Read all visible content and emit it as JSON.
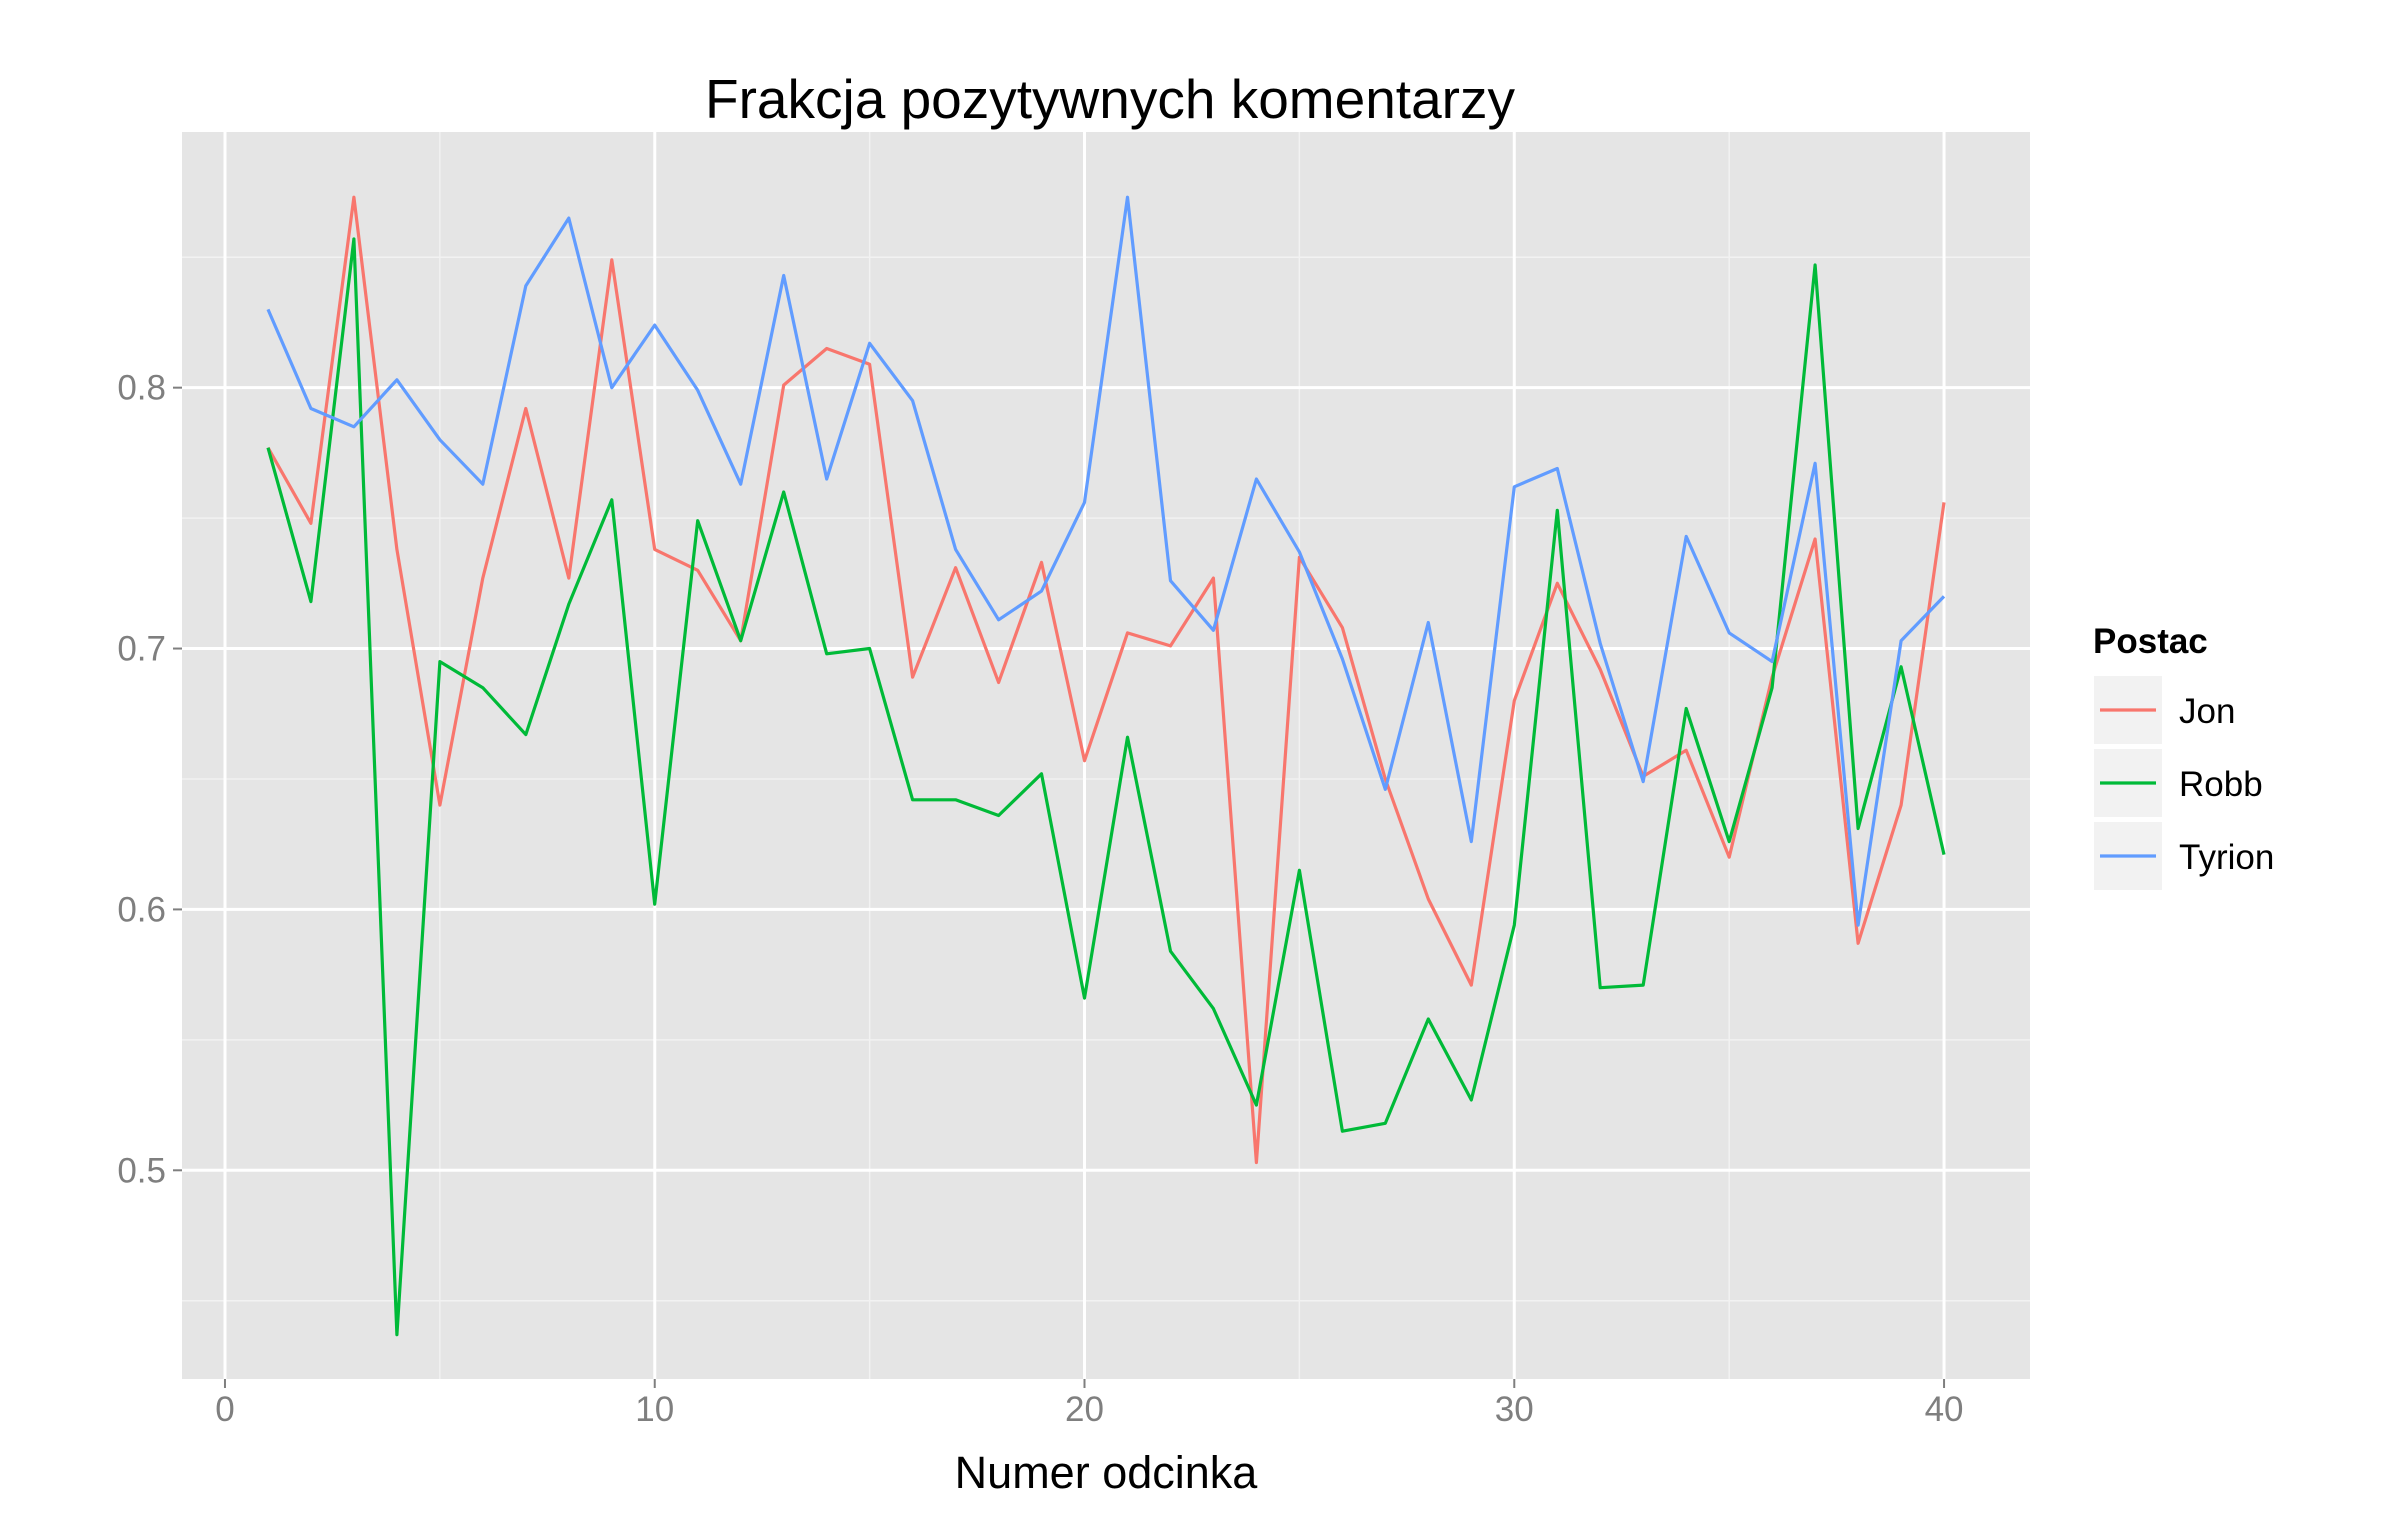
{
  "chart_data": {
    "type": "line",
    "title": "Frakcja pozytywnych komentarzy",
    "xlabel": "Numer odcinka",
    "ylabel": "",
    "xlim": [
      -1,
      42
    ],
    "ylim": [
      0.42,
      0.898
    ],
    "x_ticks": [
      0,
      10,
      20,
      30,
      40
    ],
    "x_tick_labels": [
      "0",
      "10",
      "20",
      "30",
      "40"
    ],
    "y_ticks": [
      0.5,
      0.6,
      0.7,
      0.8
    ],
    "y_tick_labels": [
      "0.5",
      "0.6",
      "0.7",
      "0.8"
    ],
    "grid": true,
    "background": "#e5e5e5",
    "legend": {
      "title": "Postac",
      "position": "right"
    },
    "x": [
      1,
      2,
      3,
      4,
      5,
      6,
      7,
      8,
      9,
      10,
      11,
      12,
      13,
      14,
      15,
      16,
      17,
      18,
      19,
      20,
      21,
      22,
      23,
      24,
      25,
      26,
      27,
      28,
      29,
      30,
      31,
      32,
      33,
      34,
      35,
      36,
      37,
      38,
      39,
      40
    ],
    "series": [
      {
        "name": "Jon",
        "color": "#f8766d",
        "values": [
          0.777,
          0.748,
          0.873,
          0.738,
          0.64,
          0.727,
          0.792,
          0.727,
          0.849,
          0.738,
          0.73,
          0.703,
          0.801,
          0.815,
          0.809,
          0.689,
          0.731,
          0.687,
          0.733,
          0.657,
          0.706,
          0.701,
          0.727,
          0.503,
          0.735,
          0.708,
          0.65,
          0.604,
          0.571,
          0.68,
          0.725,
          0.692,
          0.651,
          0.661,
          0.62,
          0.689,
          0.742,
          0.587,
          0.64,
          0.756
        ]
      },
      {
        "name": "Robb",
        "color": "#00ba38",
        "values": [
          0.777,
          0.718,
          0.857,
          0.437,
          0.695,
          0.685,
          0.667,
          0.717,
          0.757,
          0.602,
          0.749,
          0.703,
          0.76,
          0.698,
          0.7,
          0.642,
          0.642,
          0.636,
          0.652,
          0.566,
          0.666,
          0.584,
          0.562,
          0.525,
          0.615,
          0.515,
          0.518,
          0.558,
          0.527,
          0.594,
          0.753,
          0.57,
          0.571,
          0.677,
          0.626,
          0.685,
          0.847,
          0.631,
          0.693,
          0.621
        ]
      },
      {
        "name": "Tyrion",
        "color": "#619cff",
        "values": [
          0.83,
          0.792,
          0.785,
          0.803,
          0.78,
          0.763,
          0.839,
          0.865,
          0.8,
          0.824,
          0.799,
          0.763,
          0.843,
          0.765,
          0.817,
          0.795,
          0.738,
          0.711,
          0.722,
          0.756,
          0.873,
          0.726,
          0.707,
          0.765,
          0.737,
          0.696,
          0.646,
          0.71,
          0.626,
          0.762,
          0.769,
          0.702,
          0.649,
          0.743,
          0.706,
          0.695,
          0.771,
          0.594,
          0.703,
          0.72
        ]
      }
    ]
  }
}
